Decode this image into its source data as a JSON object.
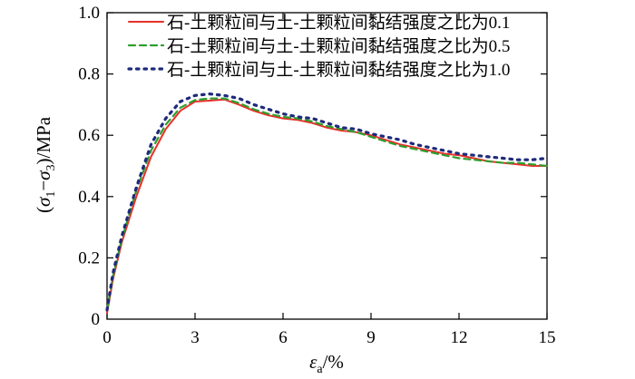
{
  "chart_data": {
    "type": "line",
    "xlabel": "εa/%",
    "ylabel": "(σ1−σ3)/MPa",
    "xlim": [
      0,
      15
    ],
    "ylim": [
      0,
      1.0
    ],
    "xticks": [
      "0",
      "3",
      "6",
      "9",
      "12",
      "15"
    ],
    "xtick_values": [
      0,
      3,
      6,
      9,
      12,
      15
    ],
    "yticks": [
      "0.2",
      "0.4",
      "0.6",
      "0.8",
      "1.0"
    ],
    "ytick_values": [
      0.2,
      0.4,
      0.6,
      0.8,
      1.0
    ],
    "legend_position": "top-right",
    "series": [
      {
        "name": "石-土颗粒间与土-土颗粒间黏结强度之比为0.1",
        "color": "#e8302a",
        "style": "solid",
        "x": [
          0,
          0.2,
          0.5,
          1.0,
          1.5,
          2.0,
          2.5,
          3.0,
          3.5,
          4.0,
          4.5,
          5.0,
          5.5,
          6.0,
          6.5,
          7.0,
          7.5,
          8.0,
          8.5,
          9.0,
          9.5,
          10.0,
          10.5,
          11.0,
          11.5,
          12.0,
          12.5,
          13.0,
          13.5,
          14.0,
          14.5,
          15.0
        ],
        "y": [
          0.02,
          0.13,
          0.25,
          0.4,
          0.53,
          0.62,
          0.68,
          0.71,
          0.713,
          0.717,
          0.7,
          0.68,
          0.665,
          0.655,
          0.65,
          0.64,
          0.625,
          0.615,
          0.61,
          0.6,
          0.585,
          0.57,
          0.56,
          0.55,
          0.54,
          0.535,
          0.525,
          0.515,
          0.51,
          0.505,
          0.5,
          0.5
        ]
      },
      {
        "name": "石-土颗粒间与土-土颗粒间黏结强度之比为0.5",
        "color": "#2e9e2e",
        "style": "dashed",
        "x": [
          0,
          0.2,
          0.5,
          1.0,
          1.5,
          2.0,
          2.5,
          3.0,
          3.5,
          4.0,
          4.5,
          5.0,
          5.5,
          6.0,
          6.5,
          7.0,
          7.5,
          8.0,
          8.5,
          9.0,
          9.5,
          10.0,
          10.5,
          11.0,
          11.5,
          12.0,
          12.5,
          13.0,
          13.5,
          14.0,
          14.5,
          15.0
        ],
        "y": [
          0.03,
          0.14,
          0.26,
          0.42,
          0.55,
          0.635,
          0.69,
          0.715,
          0.72,
          0.72,
          0.705,
          0.685,
          0.67,
          0.66,
          0.655,
          0.645,
          0.63,
          0.62,
          0.61,
          0.595,
          0.58,
          0.565,
          0.555,
          0.545,
          0.535,
          0.525,
          0.52,
          0.515,
          0.51,
          0.51,
          0.505,
          0.5
        ]
      },
      {
        "name": "石-土颗粒间与土-土颗粒间黏结强度之比为1.0",
        "color": "#1e2a7a",
        "style": "dotted",
        "x": [
          0,
          0.2,
          0.5,
          1.0,
          1.5,
          2.0,
          2.5,
          3.0,
          3.5,
          4.0,
          4.5,
          5.0,
          5.5,
          6.0,
          6.5,
          7.0,
          7.5,
          8.0,
          8.5,
          9.0,
          9.5,
          10.0,
          10.5,
          11.0,
          11.5,
          12.0,
          12.5,
          13.0,
          13.5,
          14.0,
          14.5,
          15.0
        ],
        "y": [
          0.03,
          0.15,
          0.27,
          0.43,
          0.57,
          0.655,
          0.71,
          0.73,
          0.735,
          0.73,
          0.72,
          0.7,
          0.685,
          0.67,
          0.66,
          0.655,
          0.64,
          0.625,
          0.62,
          0.605,
          0.595,
          0.585,
          0.57,
          0.56,
          0.55,
          0.54,
          0.535,
          0.53,
          0.525,
          0.52,
          0.52,
          0.525
        ]
      }
    ]
  }
}
